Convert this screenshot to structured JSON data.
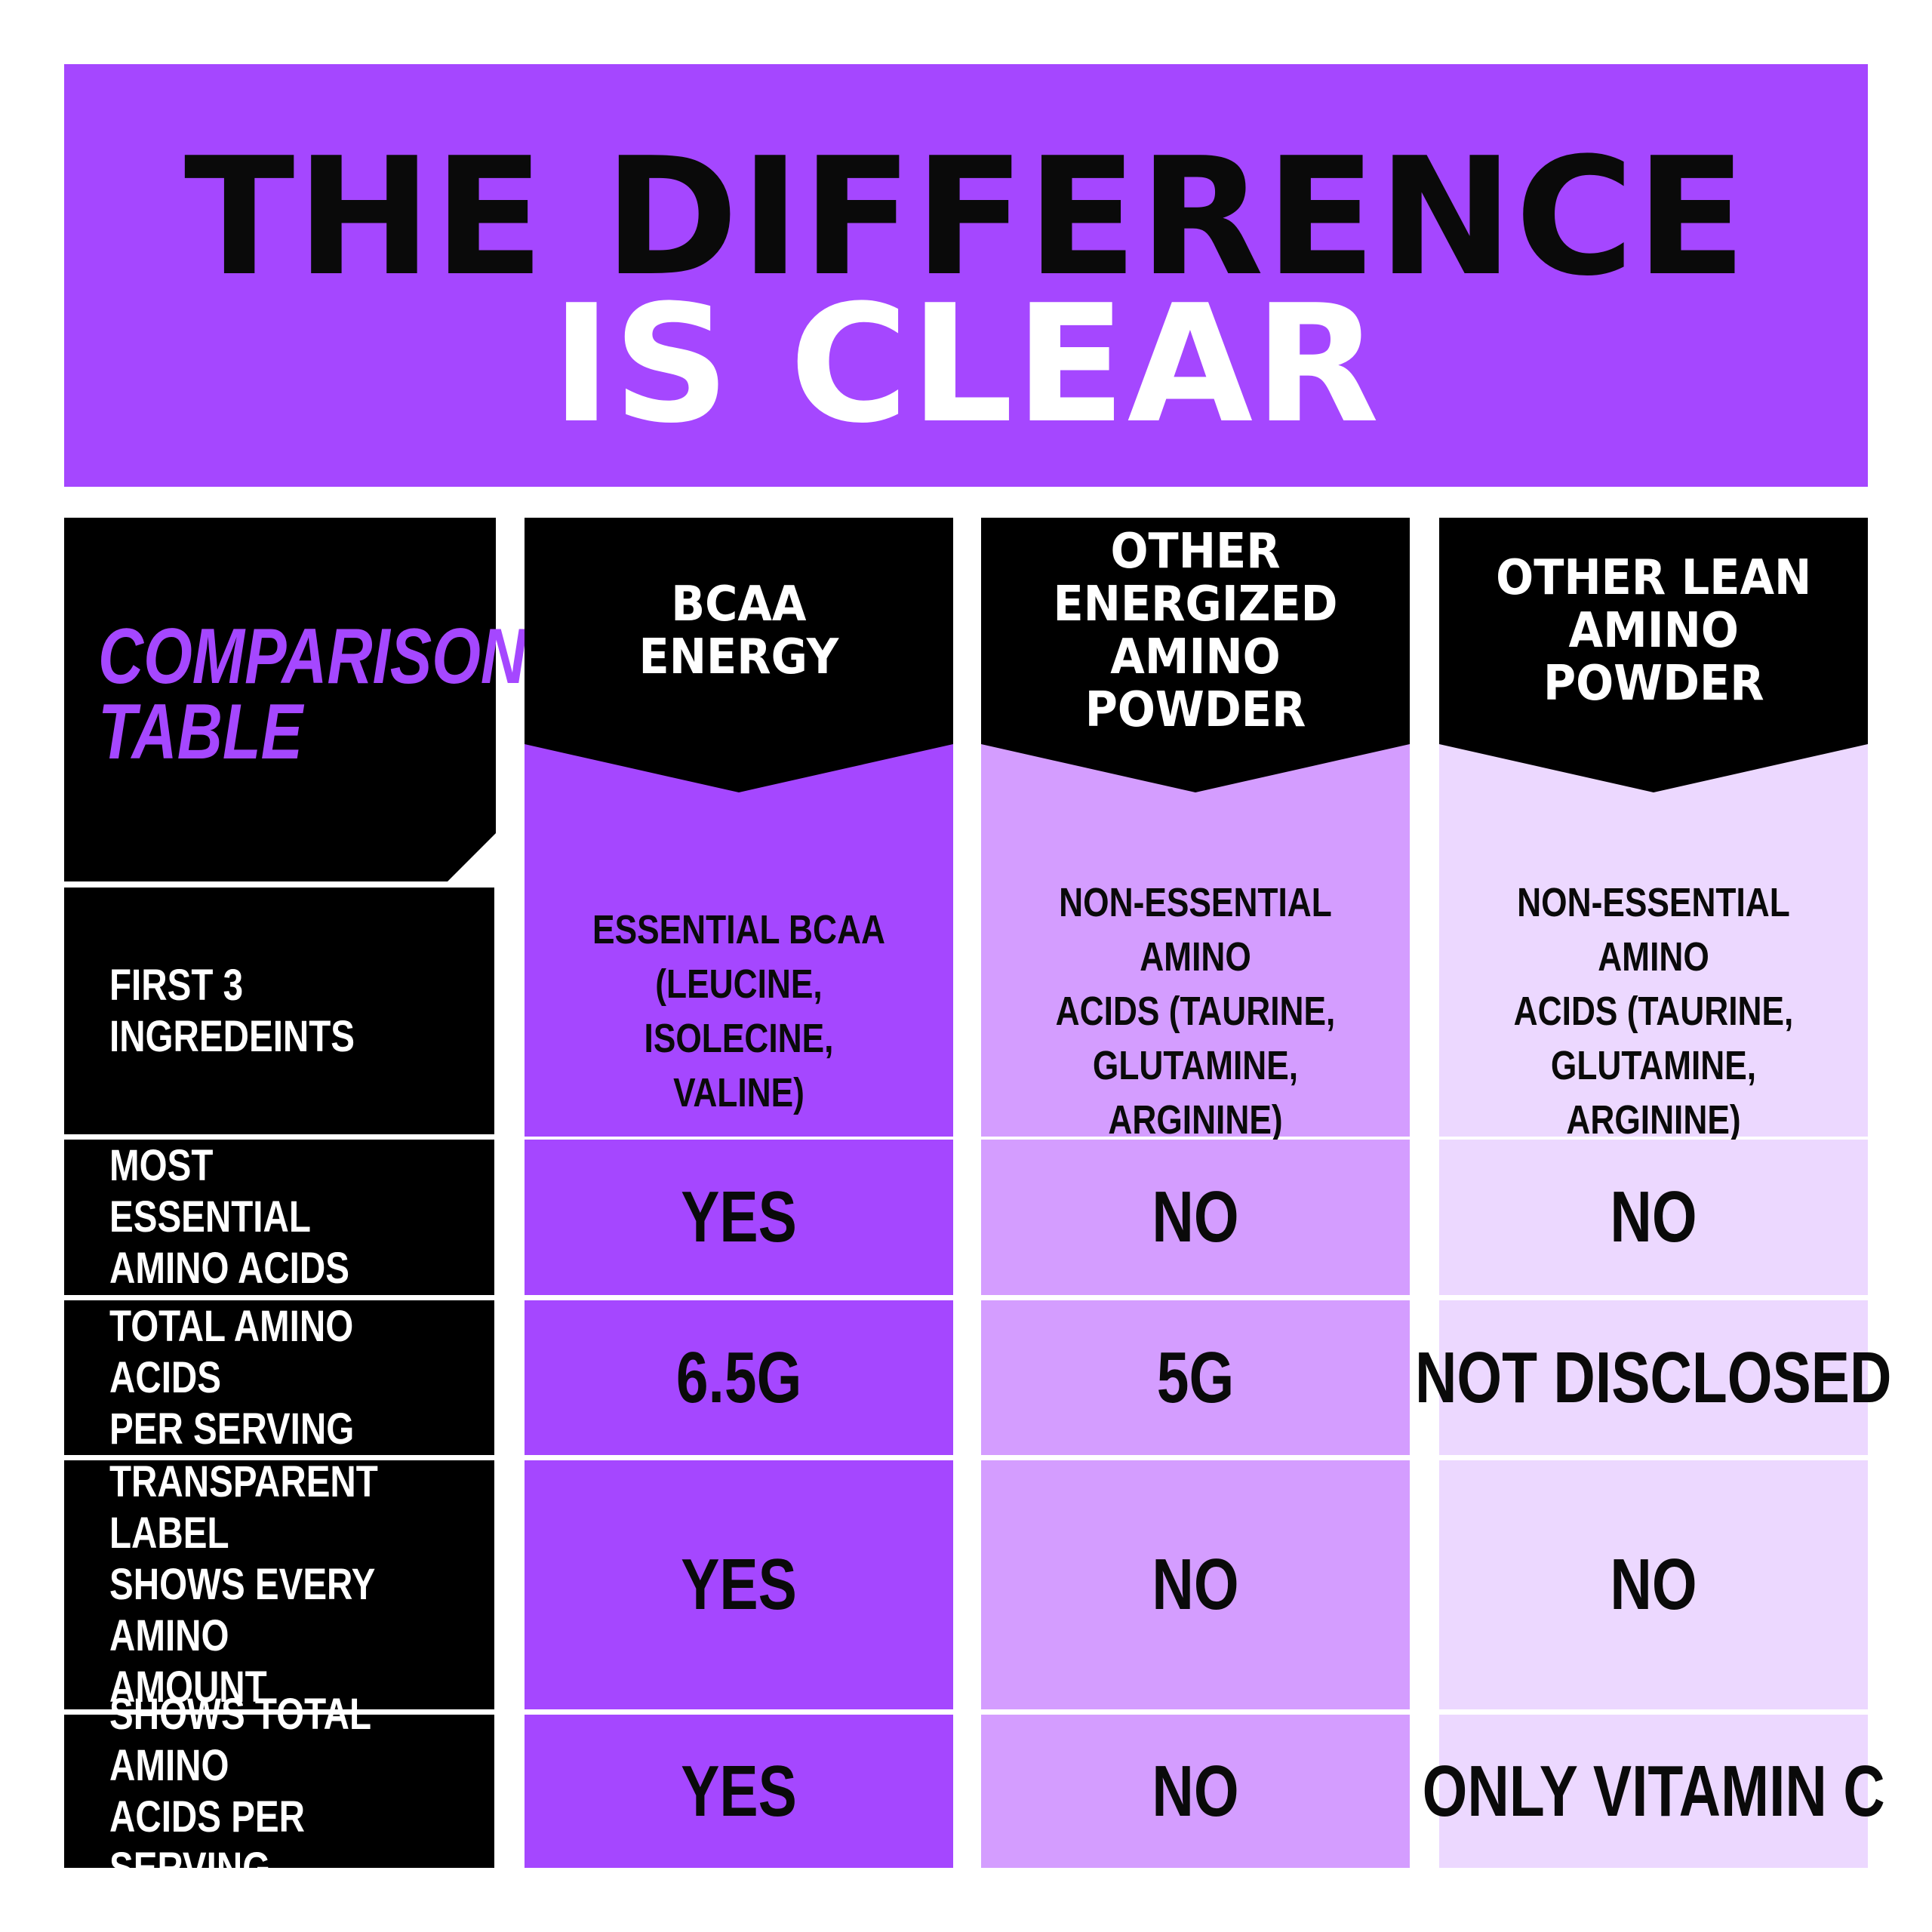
{
  "title": {
    "line1": "THE DIFFERENCE",
    "line2": "IS CLEAR"
  },
  "table": {
    "corner_label": "COMPARISON\nTABLE",
    "columns": [
      "BCAA\nENERGY",
      "OTHER\nENERGIZED\nAMINO POWDER",
      "OTHER LEAN\nAMINO\nPOWDER"
    ],
    "rows": [
      {
        "label": "FIRST 3 INGREDEINTS",
        "values": [
          "ESSENTIAL BCAA\n(LEUCINE, ISOLECINE,\nVALINE)",
          "NON-ESSENTIAL AMINO\nACIDS (TAURINE,\nGLUTAMINE, ARGININE)",
          "NON-ESSENTIAL AMINO\nACIDS (TAURINE,\nGLUTAMINE, ARGININE)"
        ]
      },
      {
        "label": "MOST ESSENTIAL\nAMINO ACIDS",
        "values": [
          "YES",
          "NO",
          "NO"
        ]
      },
      {
        "label": "TOTAL AMINO ACIDS\nPER SERVING",
        "values": [
          "6.5G",
          "5G",
          "NOT DISCLOSED"
        ]
      },
      {
        "label": "TRANSPARENT LABEL\nSHOWS EVERY AMINO\nAMOUNT",
        "values": [
          "YES",
          "NO",
          "NO"
        ]
      },
      {
        "label": "SHOWS TOTAL AMINO\nACIDS PER SERVING",
        "values": [
          "YES",
          "NO",
          "ONLY VITAMIN C"
        ]
      }
    ]
  },
  "colors": {
    "accent_purple": "#a547ff",
    "medium_purple": "#d49dff",
    "light_purple": "#ecd8ff",
    "black": "#000000",
    "white": "#ffffff"
  }
}
